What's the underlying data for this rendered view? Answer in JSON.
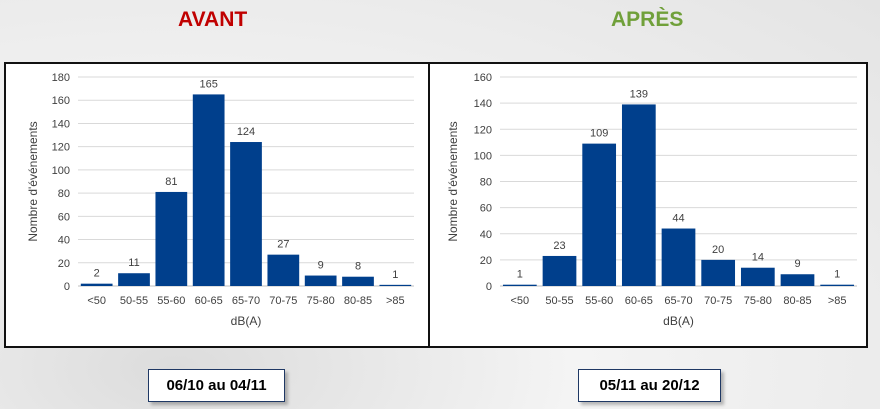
{
  "headings": {
    "left": "AVANT",
    "right": "APRÈS"
  },
  "dates": {
    "left": "06/10 au 04/11",
    "right": "05/11 au 20/12"
  },
  "colors": {
    "bar": "#003f8c",
    "avant": "#c00000",
    "apres": "#70a03a"
  },
  "chart_data": [
    {
      "type": "bar",
      "title": "",
      "xlabel": "dB(A)",
      "ylabel": "Nombre d'événements",
      "categories": [
        "<50",
        "50-55",
        "55-60",
        "60-65",
        "65-70",
        "70-75",
        "75-80",
        "80-85",
        ">85"
      ],
      "values": [
        2,
        11,
        81,
        165,
        124,
        27,
        9,
        8,
        1
      ],
      "ylim": [
        0,
        180
      ],
      "yticks": [
        0,
        20,
        40,
        60,
        80,
        100,
        120,
        140,
        160,
        180
      ],
      "grid": true
    },
    {
      "type": "bar",
      "title": "",
      "xlabel": "dB(A)",
      "ylabel": "Nombre d'événements",
      "categories": [
        "<50",
        "50-55",
        "55-60",
        "60-65",
        "65-70",
        "70-75",
        "75-80",
        "80-85",
        ">85"
      ],
      "values": [
        1,
        23,
        109,
        139,
        44,
        20,
        14,
        9,
        1
      ],
      "ylim": [
        0,
        160
      ],
      "yticks": [
        0,
        20,
        40,
        60,
        80,
        100,
        120,
        140,
        160
      ],
      "grid": true
    }
  ]
}
